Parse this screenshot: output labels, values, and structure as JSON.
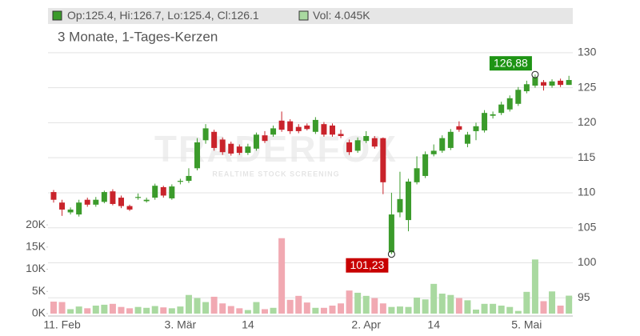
{
  "chart_data": {
    "type": "candlestick",
    "header_price": "Op:125.4, Hi:126.7, Lo:125.4, Cl:126.1",
    "header_volume": "Vol: 4.045K",
    "subtitle": "3 Monate, 1-Tages-Kerzen",
    "watermark": "TRADERFOX",
    "watermark_sub": "REALTIME STOCK SCREENING",
    "up_color": "#3b9b2b",
    "down_color": "#c9232b",
    "volume_up_color": "#a9d9a0",
    "volume_down_color": "#f1a9b2",
    "categories": [
      null,
      "11. Feb",
      null,
      null,
      null,
      null,
      null,
      null,
      null,
      null,
      null,
      null,
      null,
      null,
      null,
      "3. Mär",
      null,
      null,
      null,
      null,
      null,
      null,
      null,
      "14",
      null,
      null,
      null,
      null,
      null,
      null,
      null,
      null,
      null,
      null,
      null,
      null,
      null,
      "2. Apr",
      null,
      null,
      null,
      null,
      null,
      null,
      null,
      "14",
      null,
      null,
      null,
      null,
      null,
      null,
      null,
      null,
      null,
      null,
      "5. Mai",
      null,
      null,
      null,
      null,
      null
    ],
    "open": [
      110.1,
      108.6,
      107.2,
      106.9,
      109.0,
      108.3,
      108.7,
      110.2,
      109.3,
      108.1,
      109.3,
      108.8,
      109.3,
      110.8,
      109.2,
      111.6,
      111.7,
      113.5,
      117.5,
      118.7,
      117.6,
      117.0,
      116.6,
      115.7,
      116.3,
      118.2,
      118.3,
      120.3,
      120.2,
      119.4,
      119.6,
      118.7,
      119.8,
      119.6,
      118.4,
      117.2,
      116.0,
      117.4,
      117.8,
      117.8,
      101.5,
      107.2,
      106.1,
      111.5,
      112.4,
      115.5,
      116.0,
      116.4,
      119.5,
      117.0,
      118.8,
      118.9,
      121.0,
      121.4,
      121.9,
      122.7,
      124.5,
      125.3,
      125.8,
      125.3,
      126.0,
      125.4
    ],
    "high": [
      110.4,
      109.0,
      107.9,
      109.0,
      109.3,
      109.4,
      110.3,
      110.5,
      109.6,
      108.3,
      109.9,
      109.3,
      111.3,
      111.0,
      111.2,
      112.0,
      113.5,
      117.8,
      119.8,
      119.0,
      117.9,
      117.3,
      116.9,
      117.0,
      118.6,
      118.8,
      119.6,
      121.6,
      120.5,
      119.8,
      119.9,
      120.8,
      120.1,
      119.9,
      119.0,
      117.6,
      117.9,
      118.8,
      118.1,
      117.9,
      110.0,
      113.0,
      112.0,
      115.2,
      115.9,
      116.9,
      118.2,
      119.1,
      120.2,
      118.7,
      120.0,
      121.8,
      121.6,
      123.0,
      123.9,
      125.1,
      126.0,
      126.88,
      126.1,
      126.2,
      126.3,
      126.7
    ],
    "low": [
      108.6,
      106.7,
      106.9,
      106.6,
      108.0,
      108.0,
      108.5,
      108.2,
      107.8,
      107.4,
      109.0,
      108.6,
      109.0,
      109.3,
      109.0,
      111.2,
      111.4,
      113.2,
      117.0,
      116.0,
      115.4,
      115.3,
      115.4,
      115.4,
      116.0,
      117.1,
      118.0,
      118.7,
      118.4,
      118.5,
      118.9,
      118.4,
      118.0,
      118.0,
      117.8,
      115.4,
      115.7,
      117.1,
      116.3,
      109.8,
      101.23,
      106.5,
      104.5,
      111.2,
      112.1,
      115.2,
      115.7,
      116.1,
      118.7,
      116.5,
      117.5,
      118.6,
      120.6,
      121.1,
      121.6,
      122.4,
      124.2,
      125.0,
      124.6,
      125.0,
      125.1,
      125.4
    ],
    "close": [
      109.0,
      107.6,
      107.6,
      108.6,
      108.3,
      109.0,
      110.1,
      108.4,
      108.1,
      107.6,
      109.4,
      109.0,
      111.0,
      109.6,
      110.9,
      111.7,
      112.4,
      117.2,
      119.2,
      116.4,
      115.8,
      115.6,
      115.7,
      116.6,
      118.3,
      117.4,
      119.2,
      119.0,
      118.8,
      118.8,
      119.1,
      120.4,
      118.3,
      118.3,
      118.1,
      115.8,
      117.5,
      118.1,
      116.6,
      111.5,
      106.9,
      109.1,
      111.6,
      113.5,
      115.5,
      116.0,
      117.8,
      118.7,
      119.0,
      118.3,
      119.5,
      121.4,
      121.2,
      122.6,
      123.5,
      124.7,
      125.5,
      126.5,
      125.3,
      125.9,
      125.4,
      126.1
    ],
    "volume": [
      2.7,
      2.6,
      1.0,
      1.6,
      1.2,
      1.8,
      2.0,
      2.2,
      1.5,
      1.2,
      1.5,
      1.3,
      1.7,
      1.4,
      1.2,
      1.6,
      4.2,
      3.5,
      2.6,
      3.8,
      2.3,
      1.7,
      1.2,
      0.8,
      2.6,
      1.0,
      1.3,
      17.0,
      3.1,
      4.0,
      2.5,
      1.3,
      1.3,
      1.8,
      2.3,
      5.2,
      4.7,
      4.0,
      3.5,
      2.3,
      1.5,
      1.6,
      1.5,
      3.6,
      3.2,
      6.7,
      4.5,
      4.2,
      3.5,
      3.0,
      0.9,
      2.2,
      2.2,
      1.8,
      1.5,
      0.6,
      4.9,
      12.2,
      2.8,
      5.0,
      1.8,
      4.045
    ],
    "max_label": {
      "value": 126.88,
      "label": "126,88"
    },
    "min_label": {
      "value": 101.23,
      "label": "101,23"
    },
    "ylim": [
      92.4,
      134.1
    ],
    "yticks": [
      95,
      100,
      105,
      110,
      115,
      120,
      125,
      130
    ],
    "vlim": [
      0,
      22
    ],
    "vticks": [
      {
        "value": 0,
        "label": "0K"
      },
      {
        "value": 5,
        "label": "5K"
      },
      {
        "value": 10,
        "label": "10K"
      },
      {
        "value": 15,
        "label": "15K"
      },
      {
        "value": 20,
        "label": "20K"
      }
    ],
    "grid": true
  }
}
